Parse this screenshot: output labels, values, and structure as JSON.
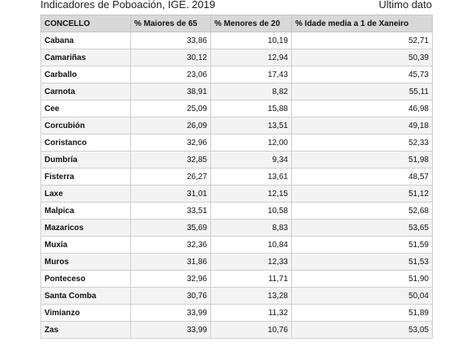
{
  "header": {
    "title": "Indicadores de Poboación, IGE. 2019",
    "latest": "Ultimo dato"
  },
  "table": {
    "columns": [
      "CONCELLO",
      "% Maiores de 65",
      "% Menores de 20",
      "% Idade media a 1 de Xaneiro"
    ],
    "rows": [
      {
        "concello": "Cabana",
        "maiores65": "33,86",
        "menores20": "10,19",
        "idade_media": "52,71"
      },
      {
        "concello": "Camariñas",
        "maiores65": "30,12",
        "menores20": "12,94",
        "idade_media": "50,39"
      },
      {
        "concello": "Carballo",
        "maiores65": "23,06",
        "menores20": "17,43",
        "idade_media": "45,73"
      },
      {
        "concello": "Carnota",
        "maiores65": "38,91",
        "menores20": "8,82",
        "idade_media": "55,11"
      },
      {
        "concello": "Cee",
        "maiores65": "25,09",
        "menores20": "15,88",
        "idade_media": "46,98"
      },
      {
        "concello": "Corcubión",
        "maiores65": "26,09",
        "menores20": "13,51",
        "idade_media": "49,18"
      },
      {
        "concello": "Coristanco",
        "maiores65": "32,96",
        "menores20": "12,00",
        "idade_media": "52,33"
      },
      {
        "concello": "Dumbría",
        "maiores65": "32,85",
        "menores20": "9,34",
        "idade_media": "51,98"
      },
      {
        "concello": "Fisterra",
        "maiores65": "26,27",
        "menores20": "13,61",
        "idade_media": "48,57"
      },
      {
        "concello": "Laxe",
        "maiores65": "31,01",
        "menores20": "12,15",
        "idade_media": "51,12"
      },
      {
        "concello": "Malpica",
        "maiores65": "33,51",
        "menores20": "10,58",
        "idade_media": "52,68"
      },
      {
        "concello": "Mazaricos",
        "maiores65": "35,69",
        "menores20": "8,83",
        "idade_media": "53,65"
      },
      {
        "concello": "Muxía",
        "maiores65": "32,36",
        "menores20": "10,84",
        "idade_media": "51,59"
      },
      {
        "concello": "Muros",
        "maiores65": "31,86",
        "menores20": "12,33",
        "idade_media": "51,53"
      },
      {
        "concello": "Ponteceso",
        "maiores65": "32,96",
        "menores20": "11,71",
        "idade_media": "51,90"
      },
      {
        "concello": "Santa Comba",
        "maiores65": "30,76",
        "menores20": "13,28",
        "idade_media": "50,04"
      },
      {
        "concello": "Vimianzo",
        "maiores65": "33,99",
        "menores20": "11,32",
        "idade_media": "51,89"
      },
      {
        "concello": "Zas",
        "maiores65": "33,99",
        "menores20": "10,76",
        "idade_media": "53,05"
      }
    ]
  }
}
